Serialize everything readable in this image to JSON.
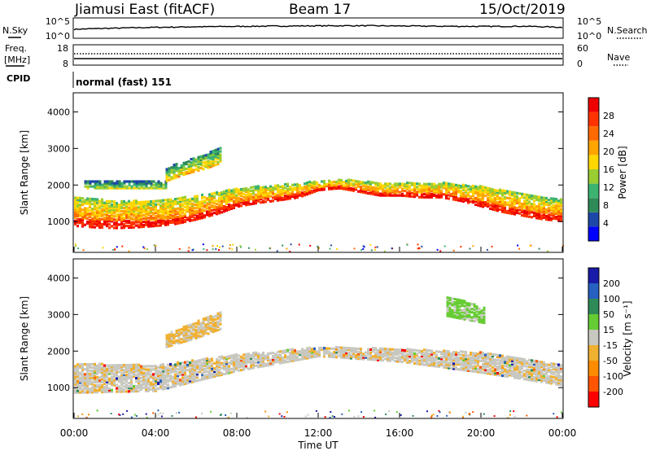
{
  "header": {
    "station": "Jiamusi East (fitACF)",
    "beam": "Beam 17",
    "date": "15/Oct/2019"
  },
  "noise_panel": {
    "left_label": "N.Sky",
    "right_label": "N.Search",
    "left_ticks": [
      "10^5",
      "10^0"
    ],
    "right_ticks": [
      "10^5",
      "10^0"
    ]
  },
  "freq_panel": {
    "left_label_1": "Freq.",
    "left_label_2": "[MHz]",
    "right_label": "Nave",
    "left_ticks": [
      "18",
      "8"
    ],
    "right_ticks": [
      "60",
      "0"
    ]
  },
  "cpid_panel": {
    "label": "CPID",
    "value": "normal (fast) 151"
  },
  "x_axis": {
    "label": "Time UT",
    "ticks": [
      "00:00",
      "04:00",
      "08:00",
      "12:00",
      "16:00",
      "20:00",
      "00:00"
    ]
  },
  "power_panel": {
    "ylabel": "Slant Range [km]",
    "yticks": [
      "1000",
      "2000",
      "3000",
      "4000"
    ],
    "colorbar_label": "Power [dB]",
    "colorbar_ticks": [
      "4",
      "8",
      "12",
      "16",
      "20",
      "24",
      "28"
    ],
    "colors": [
      "#0000ff",
      "#1d47a8",
      "#2e8b57",
      "#3cb371",
      "#9acd32",
      "#ffd700",
      "#ffa500",
      "#ff6a00",
      "#ff3300",
      "#ee0000"
    ]
  },
  "velocity_panel": {
    "ylabel": "Slant Range [km]",
    "yticks": [
      "1000",
      "2000",
      "3000",
      "4000"
    ],
    "colorbar_label": "Velocity [m s⁻¹]",
    "colorbar_ticks": [
      "200",
      "100",
      "50",
      "15",
      "-15",
      "-50",
      "-100",
      "-200"
    ],
    "colors": [
      "#1a1aa8",
      "#2660c0",
      "#2e8b57",
      "#66cc33",
      "#c8c8c0",
      "#f0b030",
      "#ff8c00",
      "#ff5500",
      "#ff0000"
    ]
  },
  "chart_data": [
    {
      "type": "line",
      "title": "N.Sky / N.Search",
      "x_unit": "hours UT",
      "x": [
        0,
        2,
        4,
        6,
        8,
        10,
        12,
        14,
        16,
        18,
        20,
        22,
        24
      ],
      "series": [
        {
          "name": "N.Sky",
          "values": [
            150,
            300,
            500,
            700,
            900,
            1100,
            1300,
            1400,
            1200,
            1000,
            900,
            1000,
            500
          ]
        }
      ],
      "yscale": "log",
      "ylim": [
        1,
        100000
      ]
    },
    {
      "type": "heatmap",
      "title": "Power [dB]",
      "x_unit": "hours UT",
      "y_unit": "km",
      "xlim": [
        0,
        24
      ],
      "ylim": [
        180,
        4500
      ],
      "bands": [
        {
          "hours": [
            0,
            1,
            2,
            3,
            4,
            5,
            6,
            7,
            8,
            9,
            10,
            11,
            12,
            13,
            14,
            15,
            16,
            17,
            18,
            19,
            20,
            21,
            22,
            23,
            24
          ],
          "low": [
            920,
            880,
            860,
            880,
            920,
            980,
            1100,
            1250,
            1450,
            1550,
            1620,
            1700,
            1900,
            1950,
            1850,
            1750,
            1750,
            1700,
            1700,
            1600,
            1450,
            1300,
            1200,
            1100,
            1050
          ],
          "high": [
            1700,
            1650,
            1620,
            1600,
            1620,
            1680,
            1750,
            1850,
            1950,
            2000,
            2050,
            2100,
            2150,
            2200,
            2150,
            2100,
            2100,
            2100,
            2100,
            2050,
            2000,
            1900,
            1800,
            1700,
            1650
          ],
          "power_center": 24
        },
        {
          "hours": [
            0.5,
            1.5,
            2.5,
            3.5,
            4.5
          ],
          "low": [
            1950,
            1950,
            1950,
            1950,
            1950
          ],
          "high": [
            2150,
            2150,
            2150,
            2150,
            2150
          ],
          "power_center": 14
        },
        {
          "hours": [
            4.5,
            5.5,
            6.5,
            7.2
          ],
          "low": [
            2150,
            2350,
            2500,
            2650
          ],
          "high": [
            2500,
            2750,
            2900,
            3100
          ],
          "power_center": 18
        }
      ]
    },
    {
      "type": "heatmap",
      "title": "Velocity [m s-1]",
      "x_unit": "hours UT",
      "y_unit": "km",
      "xlim": [
        0,
        24
      ],
      "ylim": [
        180,
        4500
      ],
      "bands": [
        {
          "hours": [
            0,
            4,
            8,
            12,
            16,
            20,
            24
          ],
          "low": [
            900,
            950,
            1500,
            1900,
            1750,
            1450,
            1100
          ],
          "high": [
            1700,
            1650,
            1950,
            2150,
            2100,
            2000,
            1650
          ],
          "velocity_center": 0
        },
        {
          "hours": [
            4.5,
            6,
            7.2
          ],
          "low": [
            2150,
            2400,
            2650
          ],
          "high": [
            2500,
            2850,
            3100
          ],
          "velocity_center": -50
        },
        {
          "hours": [
            18.3,
            19.2,
            20.2
          ],
          "low": [
            3000,
            2900,
            2800
          ],
          "high": [
            3500,
            3400,
            3200
          ],
          "velocity_center": 50
        }
      ]
    }
  ]
}
